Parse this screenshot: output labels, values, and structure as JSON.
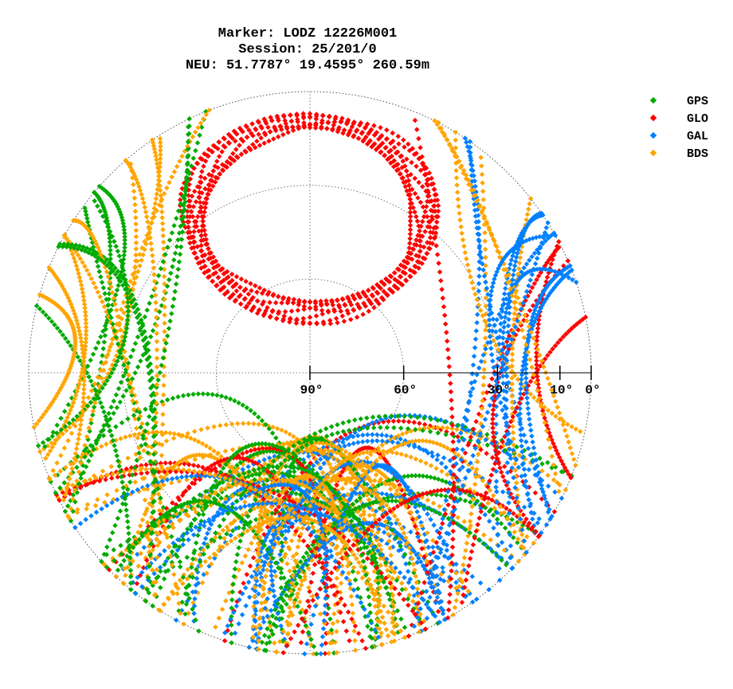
{
  "chart_data": {
    "type": "scatter",
    "projection": "polar skyplot",
    "title_lines": [
      "Marker: LODZ 12226M001",
      "Session: 25/201/0",
      "NEU: 51.7787° 19.4595° 260.59m"
    ],
    "elevation_ticks": [
      {
        "value": 90,
        "label": "90°"
      },
      {
        "value": 60,
        "label": "60°"
      },
      {
        "value": 30,
        "label": "30°"
      },
      {
        "value": 10,
        "label": "10°"
      },
      {
        "value": 0,
        "label": "0°"
      }
    ],
    "grid_circles_elevation": [
      0,
      30,
      60
    ],
    "grid": true,
    "legend_position": "top-right",
    "series": [
      {
        "name": "GPS",
        "color": "#00aa00"
      },
      {
        "name": "GLO",
        "color": "#ff0000"
      },
      {
        "name": "GAL",
        "color": "#0080ff"
      },
      {
        "name": "BDS",
        "color": "#ffa500"
      }
    ]
  }
}
